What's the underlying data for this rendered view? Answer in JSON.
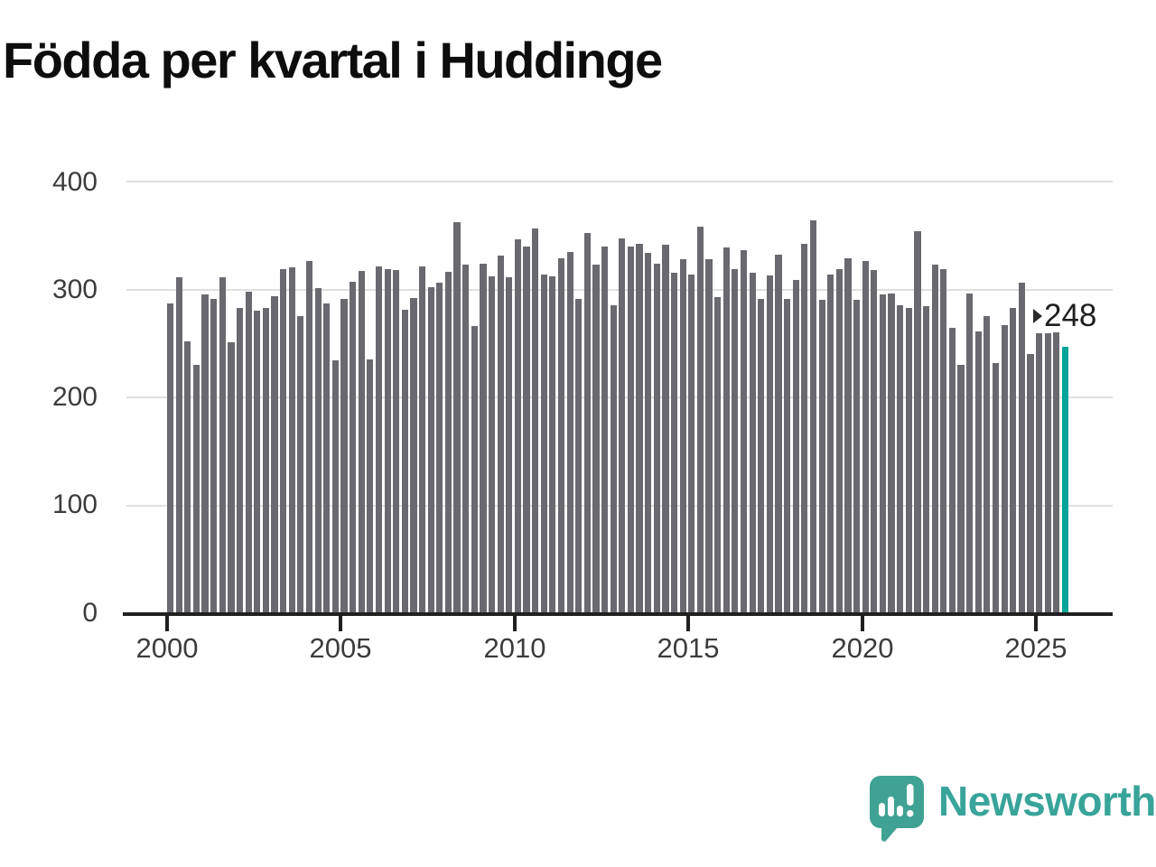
{
  "title": "Födda per kvartal i Huddinge",
  "chart_data": {
    "type": "bar",
    "title": "Födda per kvartal i Huddinge",
    "xlabel": "",
    "ylabel": "",
    "ylim": [
      0,
      400
    ],
    "yticks": [
      0,
      100,
      200,
      300,
      400
    ],
    "xticks": [
      "2000",
      "2005",
      "2010",
      "2015",
      "2020",
      "2025"
    ],
    "grid": "horizontal",
    "legend": "none",
    "bar_color": "#69696f",
    "highlight_color": "#00a39a",
    "highlight_index": 103,
    "highlight_label": "248",
    "x_unit": "quarter",
    "x_range": "2000Q1-2025Q4",
    "years": [
      {
        "year": 2000,
        "values": [
          288,
          312,
          253,
          231
        ]
      },
      {
        "year": 2001,
        "values": [
          296,
          292,
          312,
          252
        ]
      },
      {
        "year": 2002,
        "values": [
          284,
          299,
          281,
          284
        ]
      },
      {
        "year": 2003,
        "values": [
          295,
          320,
          321,
          276
        ]
      },
      {
        "year": 2004,
        "values": [
          327,
          302,
          288,
          235
        ]
      },
      {
        "year": 2005,
        "values": [
          292,
          308,
          318,
          236
        ]
      },
      {
        "year": 2006,
        "values": [
          322,
          320,
          319,
          282
        ]
      },
      {
        "year": 2007,
        "values": [
          293,
          322,
          303,
          307
        ]
      },
      {
        "year": 2008,
        "values": [
          317,
          363,
          324,
          267
        ]
      },
      {
        "year": 2009,
        "values": [
          325,
          313,
          332,
          312
        ]
      },
      {
        "year": 2010,
        "values": [
          347,
          341,
          357,
          315
        ]
      },
      {
        "year": 2011,
        "values": [
          313,
          330,
          336,
          292
        ]
      },
      {
        "year": 2012,
        "values": [
          353,
          324,
          341,
          286
        ]
      },
      {
        "year": 2013,
        "values": [
          348,
          341,
          343,
          335
        ]
      },
      {
        "year": 2014,
        "values": [
          325,
          342,
          316,
          329
        ]
      },
      {
        "year": 2015,
        "values": [
          315,
          359,
          329,
          294
        ]
      },
      {
        "year": 2016,
        "values": [
          340,
          320,
          337,
          316
        ]
      },
      {
        "year": 2017,
        "values": [
          292,
          314,
          333,
          292
        ]
      },
      {
        "year": 2018,
        "values": [
          310,
          343,
          365,
          291
        ]
      },
      {
        "year": 2019,
        "values": [
          315,
          320,
          330,
          291
        ]
      },
      {
        "year": 2020,
        "values": [
          327,
          319,
          296,
          297
        ]
      },
      {
        "year": 2021,
        "values": [
          286,
          284,
          355,
          285
        ]
      },
      {
        "year": 2022,
        "values": [
          324,
          320,
          265,
          231
        ]
      },
      {
        "year": 2023,
        "values": [
          297,
          262,
          276,
          233
        ]
      },
      {
        "year": 2024,
        "values": [
          268,
          284,
          307,
          241
        ]
      },
      {
        "year": 2025,
        "values": [
          260,
          260,
          261,
          248
        ]
      }
    ]
  },
  "y_axis": {
    "labels": [
      "400",
      "300",
      "200",
      "100",
      "0"
    ]
  },
  "x_axis": {
    "labels": [
      "2000",
      "2005",
      "2010",
      "2015",
      "2020",
      "2025"
    ]
  },
  "annotation": {
    "value": "248"
  },
  "footer": {
    "brand": "Newsworthy"
  }
}
